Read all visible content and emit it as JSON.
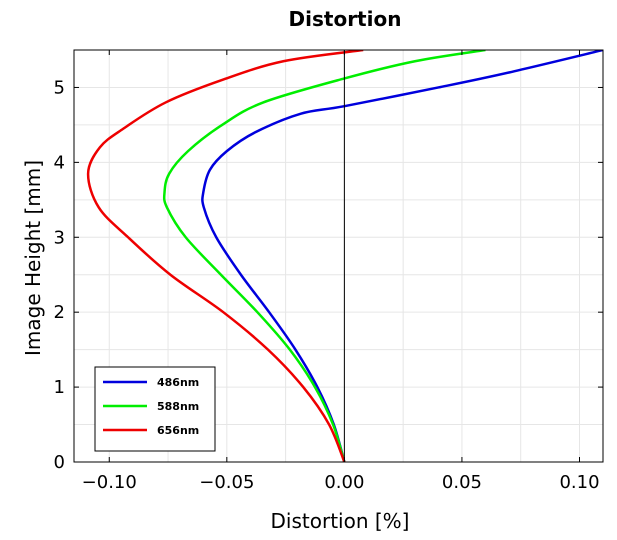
{
  "chart_data": {
    "type": "line",
    "title": "Distortion",
    "xlabel": "Distortion [%]",
    "ylabel": "Image Height [mm]",
    "xlim": [
      -0.115,
      0.11
    ],
    "ylim": [
      0,
      5.5
    ],
    "xticks": [
      -0.1,
      -0.05,
      0.0,
      0.05,
      0.1
    ],
    "xtick_labels": [
      "−0.10",
      "−0.05",
      "0.00",
      "0.05",
      "0.10"
    ],
    "yticks": [
      0,
      1,
      2,
      3,
      4,
      5
    ],
    "ytick_labels": [
      "0",
      "1",
      "2",
      "3",
      "4",
      "5"
    ],
    "grid": true,
    "zero_line_x": 0.0,
    "legend_position": "bottom-left",
    "series": [
      {
        "name": "486nm",
        "color": "#0000dd",
        "points": [
          [
            0.0,
            0.0
          ],
          [
            -0.0045,
            0.5
          ],
          [
            -0.0115,
            1.0
          ],
          [
            -0.0208,
            1.5
          ],
          [
            -0.032,
            2.0
          ],
          [
            -0.044,
            2.5
          ],
          [
            -0.0545,
            3.0
          ],
          [
            -0.0598,
            3.4
          ],
          [
            -0.06,
            3.6
          ],
          [
            -0.0572,
            3.9
          ],
          [
            -0.05,
            4.15
          ],
          [
            -0.038,
            4.4
          ],
          [
            -0.0185,
            4.65
          ],
          [
            0.0,
            4.75
          ],
          [
            0.04,
            5.0
          ],
          [
            0.07,
            5.2
          ],
          [
            0.11,
            5.5
          ]
        ]
      },
      {
        "name": "588nm",
        "color": "#00ee00",
        "points": [
          [
            0.0,
            0.0
          ],
          [
            -0.0048,
            0.5
          ],
          [
            -0.0125,
            1.0
          ],
          [
            -0.0232,
            1.5
          ],
          [
            -0.037,
            2.0
          ],
          [
            -0.0525,
            2.5
          ],
          [
            -0.0675,
            3.0
          ],
          [
            -0.0755,
            3.4
          ],
          [
            -0.0765,
            3.6
          ],
          [
            -0.0745,
            3.85
          ],
          [
            -0.0665,
            4.15
          ],
          [
            -0.052,
            4.5
          ],
          [
            -0.0345,
            4.8
          ],
          [
            0.0,
            5.12
          ],
          [
            0.03,
            5.35
          ],
          [
            0.06,
            5.5
          ]
        ]
      },
      {
        "name": "656nm",
        "color": "#ee0000",
        "points": [
          [
            0.0,
            0.0
          ],
          [
            -0.0065,
            0.5
          ],
          [
            -0.0175,
            1.0
          ],
          [
            -0.0325,
            1.5
          ],
          [
            -0.0515,
            2.0
          ],
          [
            -0.074,
            2.5
          ],
          [
            -0.092,
            3.0
          ],
          [
            -0.1045,
            3.4
          ],
          [
            -0.109,
            3.85
          ],
          [
            -0.104,
            4.2
          ],
          [
            -0.094,
            4.45
          ],
          [
            -0.076,
            4.8
          ],
          [
            -0.052,
            5.1
          ],
          [
            -0.026,
            5.35
          ],
          [
            0.008,
            5.5
          ]
        ]
      }
    ]
  }
}
